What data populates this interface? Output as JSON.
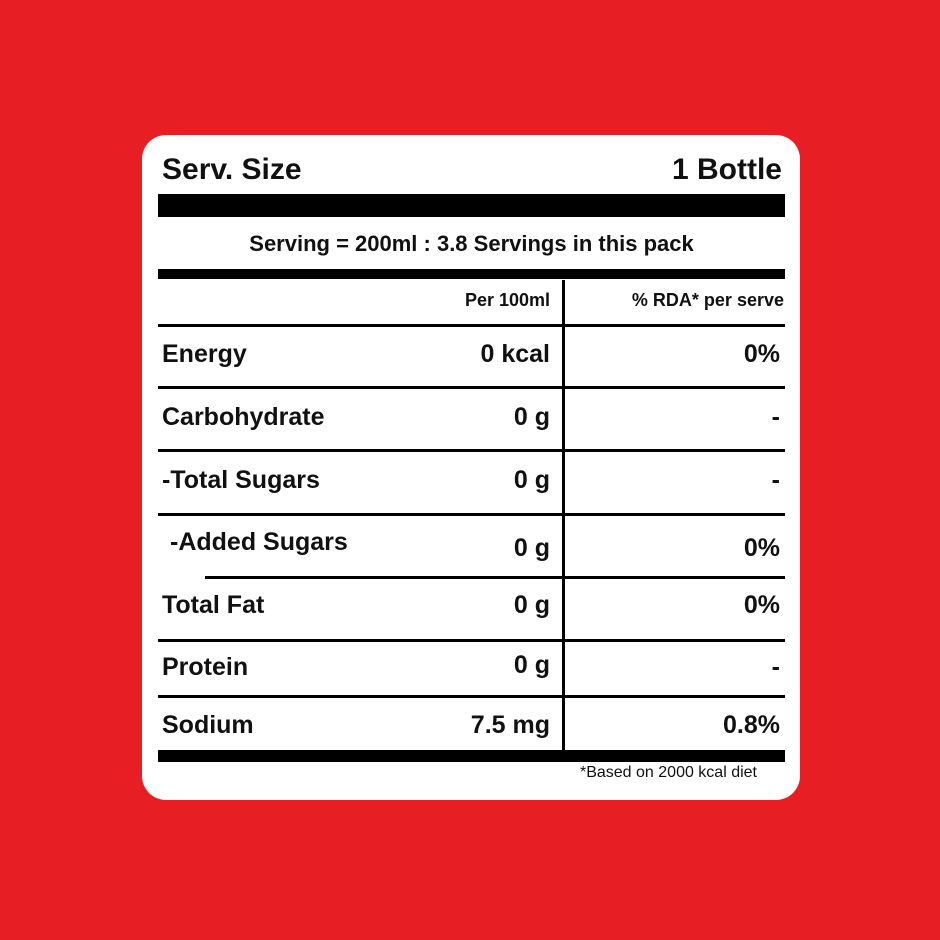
{
  "header": {
    "serv_size_label": "Serv. Size",
    "serv_size_value": "1 Bottle"
  },
  "serving_info": "Serving = 200ml : 3.8 Servings in this pack",
  "columns": {
    "per_100ml": "Per 100ml",
    "rda": "% RDA* per serve"
  },
  "rows": [
    {
      "label": "Energy",
      "per_100ml": "0 kcal",
      "rda": "0%"
    },
    {
      "label": "Carbohydrate",
      "per_100ml": "0 g",
      "rda": "-"
    },
    {
      "label": "-Total Sugars",
      "per_100ml": "0 g",
      "rda": "-"
    },
    {
      "label": "-Added Sugars",
      "per_100ml": "0 g",
      "rda": "0%"
    },
    {
      "label": "Total Fat",
      "per_100ml": "0 g",
      "rda": "0%"
    },
    {
      "label": "Protein",
      "per_100ml": "0 g",
      "rda": "-"
    },
    {
      "label": "Sodium",
      "per_100ml": "7.5 mg",
      "rda": "0.8%"
    }
  ],
  "footnote": "*Based on 2000 kcal diet",
  "colors": {
    "background": "#e81e25",
    "card": "#ffffff",
    "rules": "#000000"
  }
}
